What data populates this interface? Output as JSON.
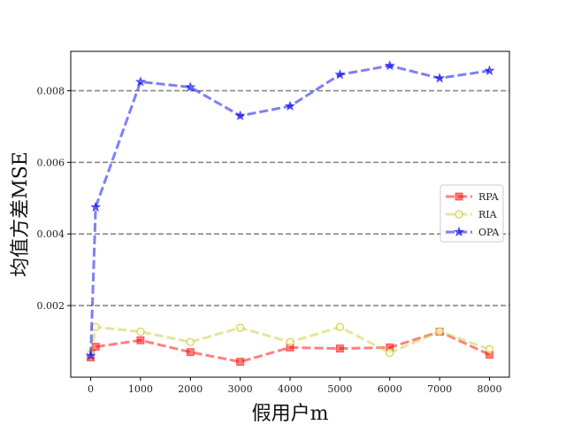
{
  "chart_data": {
    "type": "line",
    "title": "",
    "xlabel": "假用户m",
    "ylabel": "均值方差MSE",
    "x": [
      0,
      100,
      1000,
      2000,
      3000,
      4000,
      5000,
      6000,
      7000,
      8000
    ],
    "xticks": [
      0,
      1000,
      2000,
      3000,
      4000,
      5000,
      6000,
      7000,
      8000
    ],
    "xtick_labels": [
      "0",
      "1000",
      "2000",
      "3000",
      "4000",
      "5000",
      "6000",
      "7000",
      "8000"
    ],
    "yticks": [
      0.002,
      0.004,
      0.006,
      0.008
    ],
    "ytick_labels": [
      "0.002",
      "0.004",
      "0.006",
      "0.008"
    ],
    "xlim": [
      -400,
      8400
    ],
    "ylim": [
      0.0,
      0.0091
    ],
    "grid": "horizontal dashed lines at y ticks",
    "legend_position": "right",
    "series": [
      {
        "name": "RPA",
        "color": "#ff0000",
        "marker": "square",
        "values": [
          0.00055,
          0.00085,
          0.00103,
          0.0007,
          0.00043,
          0.00083,
          0.0008,
          0.00083,
          0.00127,
          0.00063
        ]
      },
      {
        "name": "RIA",
        "color": "#cccc33",
        "marker": "circle",
        "values": [
          0.00065,
          0.0014,
          0.00127,
          0.00098,
          0.00138,
          0.00098,
          0.0014,
          0.00068,
          0.00128,
          0.00078
        ]
      },
      {
        "name": "OPA",
        "color": "#0000ee",
        "marker": "star",
        "values": [
          0.0006,
          0.00475,
          0.00825,
          0.0081,
          0.0073,
          0.00757,
          0.00845,
          0.0087,
          0.00835,
          0.00856
        ]
      }
    ]
  }
}
